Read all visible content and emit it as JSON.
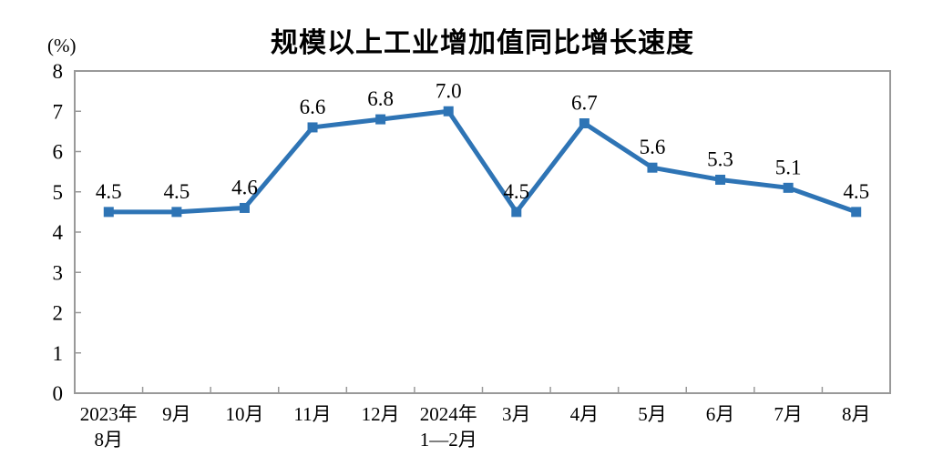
{
  "chart_data": {
    "type": "line",
    "title": "规模以上工业增加值同比增长速度",
    "ylabel": "(%)",
    "xlabel": "",
    "categories": [
      "2023年\n8月",
      "9月",
      "10月",
      "11月",
      "12月",
      "2024年\n1—2月",
      "3月",
      "4月",
      "5月",
      "6月",
      "7月",
      "8月"
    ],
    "values": [
      4.5,
      4.5,
      4.6,
      6.6,
      6.8,
      7.0,
      4.5,
      6.7,
      5.6,
      5.3,
      5.1,
      4.5
    ],
    "ylim": [
      0,
      8
    ],
    "y_ticks": [
      0,
      1,
      2,
      3,
      4,
      5,
      6,
      7,
      8
    ],
    "grid": false,
    "legend_position": "none",
    "marker_shape": "square",
    "line_color": "#2E74B5",
    "axis_color": "#999999",
    "text_color": "#000000"
  }
}
